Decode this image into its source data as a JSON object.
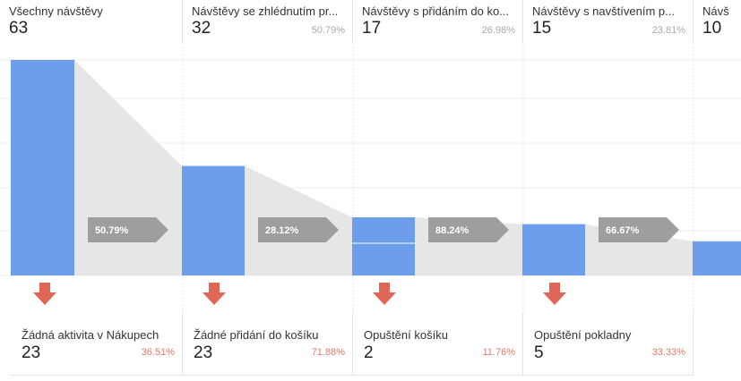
{
  "chart_data": {
    "type": "funnel",
    "steps": [
      {
        "name": "Všechny návštěvy",
        "count": "63",
        "pct": "",
        "value": 63
      },
      {
        "name": "Návštěvy se zhlédnutím pr...",
        "count": "32",
        "pct": "50.79%",
        "value": 32
      },
      {
        "name": "Návštěvy s přidáním do ko...",
        "count": "17",
        "pct": "26.98%",
        "value": 17
      },
      {
        "name": "Návštěvy s navštívením p...",
        "count": "15",
        "pct": "23.81%",
        "value": 15
      },
      {
        "name": "Návš",
        "count": "10",
        "pct": "",
        "value": 10
      }
    ],
    "conversion_labels": [
      "50.79%",
      "28.12%",
      "88.24%",
      "66.67%"
    ],
    "exits": [
      {
        "name": "Žádná aktivita v Nákupech",
        "count": "23",
        "pct": "36.51%"
      },
      {
        "name": "Žádné přidání do košíku",
        "count": "23",
        "pct": "71.88%"
      },
      {
        "name": "Opuštění košíku",
        "count": "2",
        "pct": "11.76%"
      },
      {
        "name": "Opuštění pokladny",
        "count": "5",
        "pct": "33.33%"
      }
    ],
    "colors": {
      "bar": "#6d9eeb",
      "flow": "#e6e6e6",
      "chevron": "#9e9e9e",
      "exit_arrow": "#e06656",
      "exit_pct": "#e07b6e"
    }
  }
}
